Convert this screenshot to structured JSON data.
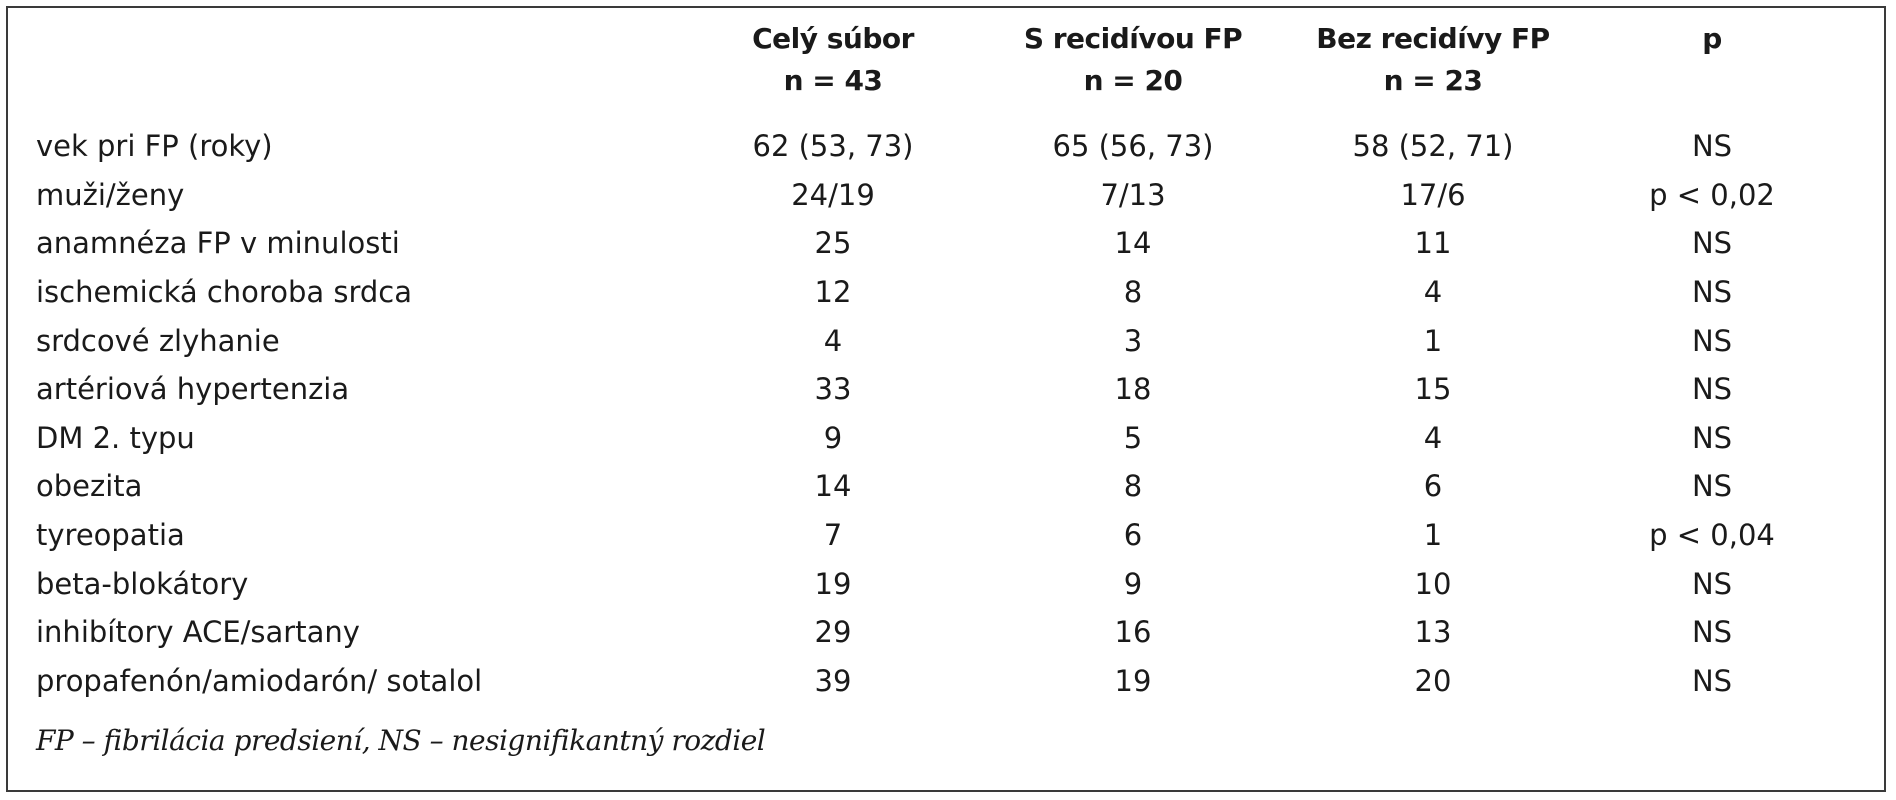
{
  "table": {
    "headers": [
      {
        "line1": "",
        "line2": ""
      },
      {
        "line1": "Celý súbor",
        "line2": "n = 43"
      },
      {
        "line1": "S recidívou FP",
        "line2": "n = 20"
      },
      {
        "line1": "Bez recidívy FP",
        "line2": "n = 23"
      },
      {
        "line1": "p",
        "line2": ""
      }
    ],
    "rows": [
      [
        "vek pri FP (roky)",
        "62 (53, 73)",
        "65 (56, 73)",
        "58 (52, 71)",
        "NS"
      ],
      [
        "muži/ženy",
        "24/19",
        "7/13",
        "17/6",
        "p < 0,02"
      ],
      [
        "anamnéza FP v minulosti",
        "25",
        "14",
        "11",
        "NS"
      ],
      [
        "ischemická choroba srdca",
        "12",
        "8",
        "4",
        "NS"
      ],
      [
        "srdcové zlyhanie",
        "4",
        "3",
        "1",
        "NS"
      ],
      [
        "artériová hypertenzia",
        "33",
        "18",
        "15",
        "NS"
      ],
      [
        "DM 2. typu",
        "9",
        "5",
        "4",
        "NS"
      ],
      [
        "obezita",
        "14",
        "8",
        "6",
        "NS"
      ],
      [
        "tyreopatia",
        "7",
        "6",
        "1",
        "p < 0,04"
      ],
      [
        "beta-blokátory",
        "19",
        "9",
        "10",
        "NS"
      ],
      [
        "inhibítory ACE/sartany",
        "29",
        "16",
        "13",
        "NS"
      ],
      [
        "propafenón/amiodarón/ sotalol",
        "39",
        "19",
        "20",
        "NS"
      ]
    ]
  },
  "footnote": "FP – fibrilácia predsiení, NS – nesignifikantný rozdiel"
}
